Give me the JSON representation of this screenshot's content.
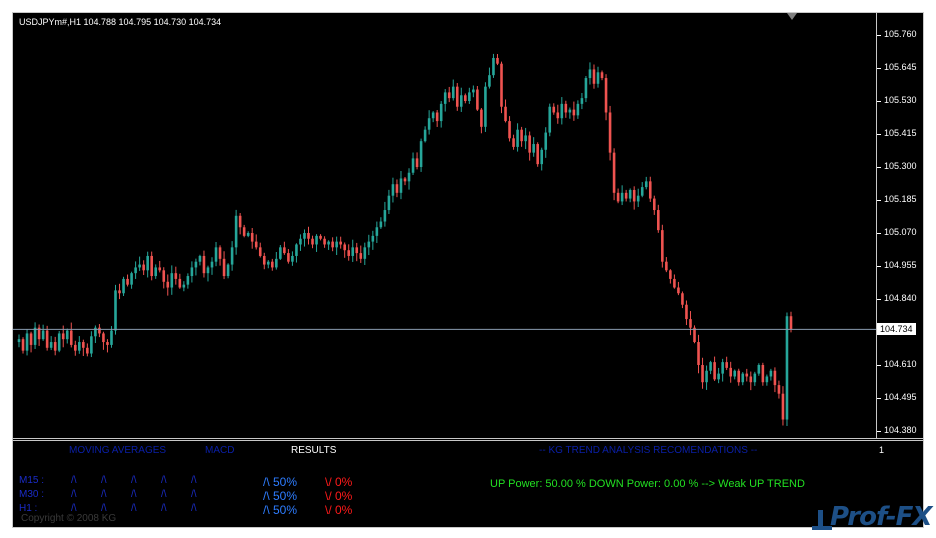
{
  "chart": {
    "symbol_info": "USDJPYm#,H1  104.788 104.795 104.730 104.734",
    "current_price": "104.734",
    "price_labels": [
      "105.760",
      "105.645",
      "105.530",
      "105.415",
      "105.300",
      "105.185",
      "105.070",
      "104.955",
      "104.840",
      "104.610",
      "104.495",
      "104.380"
    ],
    "indicator_scale_label": "1",
    "colors": {
      "bull": "#26a69a",
      "bear": "#ef5350",
      "background": "#000000",
      "price_line": "#8a9bb0"
    }
  },
  "chart_data": {
    "type": "candlestick",
    "title": "USDJPYm#,H1",
    "ylim": [
      104.38,
      105.78
    ],
    "current_price": 104.734,
    "close_series": [
      104.7,
      104.66,
      104.72,
      104.68,
      104.74,
      104.7,
      104.73,
      104.67,
      104.69,
      104.66,
      104.72,
      104.7,
      104.73,
      104.68,
      104.66,
      104.69,
      104.67,
      104.65,
      104.71,
      104.74,
      104.72,
      104.69,
      104.68,
      104.73,
      104.87,
      104.86,
      104.91,
      104.89,
      104.93,
      104.95,
      104.96,
      104.94,
      104.99,
      104.92,
      104.95,
      104.94,
      104.9,
      104.88,
      104.93,
      104.91,
      104.88,
      104.89,
      104.92,
      104.95,
      104.97,
      104.99,
      104.93,
      104.95,
      104.97,
      105.02,
      104.98,
      104.92,
      104.96,
      105.02,
      105.13,
      105.09,
      105.06,
      105.07,
      105.04,
      105.02,
      104.99,
      104.96,
      104.97,
      104.95,
      104.98,
      105.02,
      105.0,
      104.97,
      104.99,
      105.03,
      105.05,
      105.07,
      105.05,
      105.03,
      105.06,
      105.05,
      105.03,
      105.04,
      105.02,
      105.04,
      105.03,
      105.01,
      104.99,
      105.02,
      105.0,
      104.98,
      105.02,
      105.04,
      105.06,
      105.09,
      105.11,
      105.15,
      105.2,
      105.24,
      105.21,
      105.26,
      105.25,
      105.28,
      105.33,
      105.3,
      105.39,
      105.43,
      105.47,
      105.49,
      105.46,
      105.52,
      105.56,
      105.54,
      105.58,
      105.51,
      105.55,
      105.53,
      105.56,
      105.57,
      105.5,
      105.44,
      105.58,
      105.62,
      105.68,
      105.66,
      105.51,
      105.46,
      105.4,
      105.37,
      105.43,
      105.39,
      105.41,
      105.35,
      105.38,
      105.31,
      105.36,
      105.42,
      105.51,
      105.49,
      105.47,
      105.52,
      105.49,
      105.5,
      105.48,
      105.52,
      105.54,
      105.61,
      105.64,
      105.59,
      105.63,
      105.61,
      105.49,
      105.35,
      105.21,
      105.18,
      105.21,
      105.19,
      105.22,
      105.18,
      105.2,
      105.23,
      105.25,
      105.19,
      105.15,
      105.08,
      104.97,
      104.94,
      104.91,
      104.88,
      104.86,
      104.82,
      104.77,
      104.74,
      104.69,
      104.61,
      104.55,
      104.59,
      104.62,
      104.56,
      104.58,
      104.62,
      104.6,
      104.57,
      104.59,
      104.55,
      104.58,
      104.57,
      104.55,
      104.58,
      104.61,
      104.55,
      104.57,
      104.59,
      104.54,
      104.51,
      104.42,
      104.78,
      104.734
    ]
  },
  "indicator": {
    "headers": {
      "moving_averages": "MOVING AVERAGES",
      "macd": "MACD",
      "results": "RESULTS",
      "trend_analysis": "-- KG TREND ANALYSIS RECOMENDATIONS --"
    },
    "rows": [
      {
        "label": "M15 :",
        "signals": [
          "/\\",
          "/\\",
          "/\\",
          "/\\",
          "/\\"
        ],
        "up": "/\\ 50%",
        "down": "\\/ 0%"
      },
      {
        "label": "M30 :",
        "signals": [
          "/\\",
          "/\\",
          "/\\",
          "/\\",
          "/\\"
        ],
        "up": "/\\ 50%",
        "down": "\\/ 0%"
      },
      {
        "label": "H1  :",
        "signals": [
          "/\\",
          "/\\",
          "/\\",
          "/\\",
          "/\\"
        ],
        "up": "/\\ 50%",
        "down": "\\/ 0%"
      }
    ],
    "recommendation": "UP Power: 50.00 %   DOWN Power: 0.00 %   -->   Weak UP TREND",
    "copyright": "Copyright © 2008 KG"
  },
  "watermark": {
    "text": "Prof-FX"
  }
}
